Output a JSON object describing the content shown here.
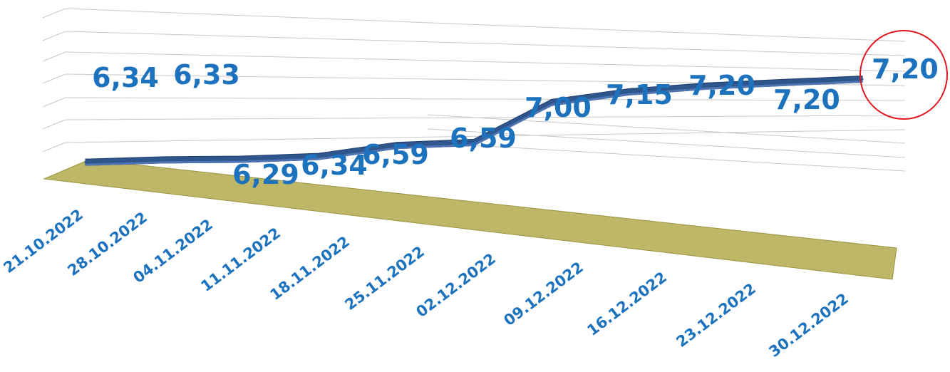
{
  "chart_data": {
    "type": "line",
    "title": "",
    "xlabel": "",
    "ylabel": "",
    "categories": [
      "21.10.2022",
      "28.10.2022",
      "04.11.2022",
      "11.11.2022",
      "18.11.2022",
      "25.11.2022",
      "02.12.2022",
      "09.12.2022",
      "16.12.2022",
      "23.12.2022",
      "30.12.2022"
    ],
    "values": [
      6.34,
      6.33,
      6.29,
      6.34,
      6.59,
      6.59,
      7.0,
      7.15,
      7.2,
      7.2,
      7.2
    ],
    "series_point_values": [
      6.34,
      6.33,
      6.29,
      6.29,
      6.42,
      6.42,
      6.95,
      7.03,
      7.04,
      7.02,
      7.0
    ],
    "data_labels": [
      "6,34",
      "6,33",
      "6,29",
      "6,34",
      "6,59",
      "6,59",
      "7,00",
      "7,15",
      "7,20",
      "7,20",
      "7,20"
    ],
    "grid": true,
    "legend": "none",
    "perspective": "3d",
    "highlight": {
      "index": 10,
      "shape": "circle",
      "color": "#e0161e"
    },
    "colors": {
      "line_top": "#2f568c",
      "line_face": "#4f74b3",
      "floor": "#bdb767",
      "floor_edge": "#9a9440",
      "grid": "#c8c8c8",
      "labels": "#1d72bd"
    }
  }
}
